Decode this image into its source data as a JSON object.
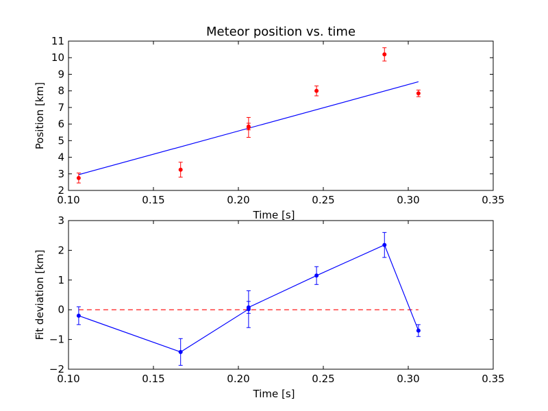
{
  "colors": {
    "data_points": "#ff0000",
    "fit_line": "#0000ff",
    "residuals": "#0000ff",
    "zero_line": "#ff0000",
    "axes": "#000000"
  },
  "chart_data": [
    {
      "type": "scatter",
      "title": "Meteor position vs. time",
      "xlabel": "Time [s]",
      "ylabel": "Position [km]",
      "xlim": [
        0.1,
        0.35
      ],
      "ylim": [
        2,
        11
      ],
      "xticks": [
        "0.10",
        "0.15",
        "0.20",
        "0.25",
        "0.30",
        "0.35"
      ],
      "yticks": [
        "2",
        "3",
        "4",
        "5",
        "6",
        "7",
        "8",
        "9",
        "10",
        "11"
      ],
      "grid": false,
      "points": [
        {
          "x": 0.106,
          "y": 2.75,
          "err": 0.3
        },
        {
          "x": 0.166,
          "y": 3.25,
          "err": 0.45
        },
        {
          "x": 0.206,
          "y": 5.8,
          "err": 0.6
        },
        {
          "x": 0.206,
          "y": 5.85,
          "err": 0.2
        },
        {
          "x": 0.246,
          "y": 8.0,
          "err": 0.3
        },
        {
          "x": 0.286,
          "y": 10.2,
          "err": 0.4
        },
        {
          "x": 0.306,
          "y": 7.85,
          "err": 0.2
        }
      ],
      "fit_line": {
        "x": [
          0.106,
          0.306
        ],
        "y": [
          2.95,
          8.55
        ]
      }
    },
    {
      "type": "line",
      "title": "",
      "xlabel": "Time [s]",
      "ylabel": "Fit deviation [km]",
      "xlim": [
        0.1,
        0.35
      ],
      "ylim": [
        -2,
        3
      ],
      "xticks": [
        "0.10",
        "0.15",
        "0.20",
        "0.25",
        "0.30",
        "0.35"
      ],
      "yticks": [
        "−2",
        "−1",
        "0",
        "1",
        "2",
        "3"
      ],
      "grid": false,
      "points": [
        {
          "x": 0.106,
          "y": -0.2,
          "err": 0.3
        },
        {
          "x": 0.166,
          "y": -1.42,
          "err": 0.45
        },
        {
          "x": 0.206,
          "y": 0.02,
          "err": 0.62
        },
        {
          "x": 0.206,
          "y": 0.08,
          "err": 0.2
        },
        {
          "x": 0.246,
          "y": 1.15,
          "err": 0.3
        },
        {
          "x": 0.286,
          "y": 2.18,
          "err": 0.42
        },
        {
          "x": 0.306,
          "y": -0.7,
          "err": 0.2
        }
      ],
      "zero_line": {
        "x": [
          0.106,
          0.306
        ],
        "y": 0
      }
    }
  ]
}
